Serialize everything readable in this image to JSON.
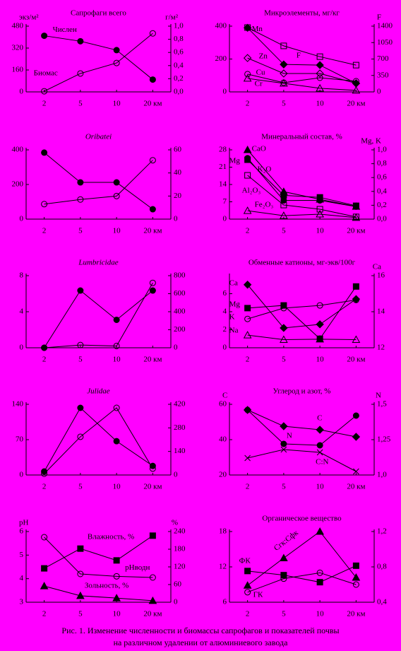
{
  "chart_data": [
    {
      "type": "line",
      "title": "Сапрофаги всего",
      "ylabel": "экз/м²",
      "y2label": "г/м²",
      "categories": [
        "2",
        "5",
        "10",
        "20 км"
      ],
      "ylim": [
        0,
        480
      ],
      "yticks": [
        0,
        160,
        320,
        480
      ],
      "y2lim": [
        0,
        1
      ],
      "y2ticks": [
        {
          "value": 0,
          "label": "0,0"
        },
        {
          "value": 0.2,
          "label": "0,2"
        },
        {
          "value": 0.4,
          "label": "0,4"
        },
        {
          "value": 0.6,
          "label": "0,6"
        },
        {
          "value": 0.8,
          "label": "0,8"
        },
        {
          "value": 1,
          "label": "1,0"
        }
      ],
      "series": [
        {
          "name": "Числен",
          "color": "#000000",
          "marker": "circle",
          "filled": true,
          "values": [
            410,
            370,
            305,
            90
          ]
        },
        {
          "name": "Биомас",
          "color": "#000000",
          "marker": "circle",
          "filled": false,
          "axis": "y2",
          "values": [
            0.01,
            0.28,
            0.44,
            0.89
          ]
        }
      ]
    },
    {
      "type": "line",
      "title": "Микроэлементы, мг/кг",
      "y2label": "F",
      "categories": [
        "2",
        "5",
        "10",
        "20 км"
      ],
      "ylim": [
        0,
        400
      ],
      "yticks": [
        0,
        200,
        400
      ],
      "y2lim": [
        0,
        1400
      ],
      "y2ticks": [
        0,
        350,
        700,
        1050,
        1400
      ],
      "series": [
        {
          "name": "Mn",
          "color": "#000000",
          "marker": "diamond",
          "filled": true,
          "values": [
            390,
            167,
            163,
            52
          ]
        },
        {
          "name": "Zn",
          "color": "#000000",
          "marker": "diamond",
          "filled": false,
          "values": [
            206,
            112,
            112,
            52
          ]
        },
        {
          "name": "F",
          "color": "#000000",
          "marker": "square",
          "filled": false,
          "axis": "y2",
          "values": [
            1370,
            980,
            750,
            570
          ]
        },
        {
          "name": "Cu",
          "color": "#000000",
          "marker": "circle",
          "filled": false,
          "values": [
            108,
            56,
            86,
            65
          ]
        },
        {
          "name": "Cr",
          "color": "#000000",
          "marker": "triangle",
          "filled": false,
          "values": [
            82,
            52,
            22,
            9
          ]
        }
      ]
    },
    {
      "type": "line",
      "title": "Oribatei",
      "title_italic": true,
      "categories": [
        "2",
        "5",
        "10",
        "20 км"
      ],
      "ylim": [
        0,
        400
      ],
      "yticks": [
        0,
        200,
        400
      ],
      "y2lim": [
        0,
        60
      ],
      "y2ticks": [
        0,
        20,
        40,
        60
      ],
      "series": [
        {
          "color": "#000000",
          "marker": "circle",
          "filled": true,
          "values": [
            384,
            212,
            212,
            57
          ]
        },
        {
          "color": "#000000",
          "marker": "circle",
          "filled": false,
          "axis": "y2",
          "values": [
            13,
            17,
            20,
            51
          ]
        }
      ]
    },
    {
      "type": "line",
      "title": "Минеральный состав, %",
      "y2label": "Mg, K",
      "categories": [
        "2",
        "5",
        "10",
        "20 км"
      ],
      "ylim": [
        0,
        28
      ],
      "yticks": [
        0,
        7,
        14,
        21,
        28
      ],
      "y2lim": [
        0,
        1
      ],
      "y2ticks": [
        {
          "value": 0,
          "label": "0,0"
        },
        {
          "value": 0.2,
          "label": "0,2"
        },
        {
          "value": 0.4,
          "label": "0,4"
        },
        {
          "value": 0.6,
          "label": "0,6"
        },
        {
          "value": 0.8,
          "label": "0,8"
        },
        {
          "value": 1,
          "label": "1,0"
        }
      ],
      "series": [
        {
          "name": "CaO",
          "color": "#000000",
          "marker": "triangle",
          "filled": true,
          "values": [
            28,
            11.1,
            8,
            5.1
          ]
        },
        {
          "name": "Mg",
          "color": "#000000",
          "marker": "circle",
          "filled": true,
          "axis": "y2",
          "values": [
            0.88,
            0.27,
            0.27,
            0.18
          ]
        },
        {
          "name": "K₂O",
          "color": "#000000",
          "marker": "square",
          "filled": true,
          "values": [
            24,
            9.6,
            8.8,
            5.4
          ]
        },
        {
          "name": "Al₂O₃",
          "color": "#000000",
          "marker": "square",
          "filled": false,
          "values": [
            17.7,
            5.7,
            4,
            0.9
          ]
        },
        {
          "name": "Fe₂O₃",
          "color": "#000000",
          "marker": "triangle",
          "filled": false,
          "values": [
            3.4,
            1.4,
            2,
            0.6
          ]
        }
      ]
    },
    {
      "type": "line",
      "title": "Lumbricidae",
      "title_italic": true,
      "categories": [
        "2",
        "5",
        "10",
        "20 км"
      ],
      "ylim": [
        0,
        8
      ],
      "yticks": [
        0,
        4,
        8
      ],
      "y2lim": [
        0,
        800
      ],
      "y2ticks": [
        0,
        200,
        400,
        600,
        800
      ],
      "series": [
        {
          "color": "#000000",
          "marker": "circle",
          "filled": true,
          "values": [
            0,
            6.35,
            3.1,
            6.35
          ]
        },
        {
          "color": "#000000",
          "marker": "circle",
          "filled": false,
          "axis": "y2",
          "values": [
            0,
            30,
            20,
            720
          ]
        }
      ]
    },
    {
      "type": "line",
      "title": "Обменные катионы, мг-экв/100г",
      "y2label": "Ca",
      "categories": [
        "2",
        "5",
        "10",
        "20 км"
      ],
      "ylim": [
        0,
        8
      ],
      "yticks": [
        0,
        2,
        4,
        6
      ],
      "y2lim": [
        12,
        16
      ],
      "y2ticks": [
        12,
        14,
        16
      ],
      "series": [
        {
          "name": "Ca",
          "color": "#000000",
          "marker": "diamond",
          "filled": true,
          "axis": "y2",
          "values": [
            15.5,
            13.1,
            13.3,
            14.7
          ]
        },
        {
          "name": "Mg",
          "color": "#000000",
          "marker": "square",
          "filled": true,
          "values": [
            4.4,
            4.7,
            1.0,
            6.8
          ]
        },
        {
          "name": "K",
          "color": "#000000",
          "marker": "circle",
          "filled": false,
          "values": [
            3.2,
            4.4,
            4.7,
            5.3
          ]
        },
        {
          "name": "Na",
          "color": "#000000",
          "marker": "triangle",
          "filled": false,
          "values": [
            1.4,
            0.9,
            0.95,
            0.9
          ]
        }
      ]
    },
    {
      "type": "line",
      "title": "Julidae",
      "title_italic": true,
      "categories": [
        "2",
        "5",
        "10",
        "20 км"
      ],
      "ylim": [
        0,
        140
      ],
      "yticks": [
        0,
        70,
        140
      ],
      "y2lim": [
        0,
        420
      ],
      "y2ticks": [
        0,
        140,
        280,
        420
      ],
      "series": [
        {
          "color": "#000000",
          "marker": "circle",
          "filled": true,
          "values": [
            7,
            133,
            67,
            18
          ]
        },
        {
          "color": "#000000",
          "marker": "circle",
          "filled": false,
          "axis": "y2",
          "values": [
            8,
            227,
            399,
            38
          ]
        }
      ]
    },
    {
      "type": "line",
      "title": "Углерод и азот, %",
      "ylabel": "C",
      "y2label": "N",
      "categories": [
        "2",
        "5",
        "10",
        "20 км"
      ],
      "ylim": [
        20,
        60
      ],
      "yticks": [
        20,
        40,
        60
      ],
      "y2lim": [
        1,
        1.5
      ],
      "y2ticks": [
        {
          "value": 1,
          "label": "1,0"
        },
        {
          "value": 1.25,
          "label": "1,25"
        },
        {
          "value": 1.5,
          "label": "1,5"
        }
      ],
      "series": [
        {
          "name": "C",
          "color": "#000000",
          "marker": "diamond",
          "filled": true,
          "values": [
            56.8,
            47.6,
            45.6,
            41.6
          ]
        },
        {
          "name": "N",
          "color": "#000000",
          "marker": "circle",
          "filled": true,
          "axis": "y2",
          "values": [
            1.46,
            1.22,
            1.21,
            1.42
          ]
        },
        {
          "name": "C:N",
          "color": "#000000",
          "marker": "x",
          "filled": false,
          "values": [
            29.6,
            34.4,
            32.8,
            22
          ]
        }
      ]
    },
    {
      "type": "line",
      "ylabel": "pH",
      "y2label": "%",
      "categories": [
        "2",
        "5",
        "10",
        "20 км"
      ],
      "ylim": [
        3,
        6
      ],
      "yticks": [
        3,
        4,
        5,
        6
      ],
      "y2lim": [
        0,
        240
      ],
      "y2ticks": [
        0,
        60,
        120,
        180,
        240
      ],
      "series": [
        {
          "name": "Влажность, %",
          "color": "#000000",
          "marker": "square",
          "filled": true,
          "axis": "y2",
          "values": [
            115,
            182,
            142,
            226
          ]
        },
        {
          "name": "pHводн",
          "color": "#000000",
          "marker": "circle",
          "filled": false,
          "values": [
            5.76,
            4.2,
            4.1,
            4.05
          ]
        },
        {
          "name": "Зольность, %",
          "color": "#000000",
          "marker": "triangle",
          "filled": true,
          "axis": "y2",
          "values": [
            55,
            22,
            14,
            5
          ]
        }
      ]
    },
    {
      "type": "line",
      "title": "Органическое вещество",
      "categories": [
        "2",
        "5",
        "10",
        "20 км"
      ],
      "ylim": [
        6,
        18
      ],
      "yticks": [
        6,
        12,
        18
      ],
      "y2lim": [
        0.4,
        1.2
      ],
      "y2ticks": [
        {
          "value": 0.4,
          "label": "0,4"
        },
        {
          "value": 0.8,
          "label": "0,8"
        },
        {
          "value": 1.2,
          "label": "1,2"
        }
      ],
      "series": [
        {
          "name": "Сгк:Сфк",
          "color": "#000000",
          "marker": "triangle",
          "filled": true,
          "axis": "y2",
          "values": [
            0.59,
            0.9,
            1.2,
            0.68
          ]
        },
        {
          "name": "ФК",
          "color": "#000000",
          "marker": "square",
          "filled": true,
          "values": [
            11.3,
            10.6,
            9.4,
            12.2
          ]
        },
        {
          "name": "ГК",
          "color": "#000000",
          "marker": "circle",
          "filled": false,
          "values": [
            7.7,
            10.0,
            11.0,
            9.0
          ]
        }
      ]
    }
  ],
  "caption": [
    "Рис. 1. Изменение численности и биомассы сапрофагов и показателей почвы",
    "на различном удалении от алюминиевого завода"
  ]
}
